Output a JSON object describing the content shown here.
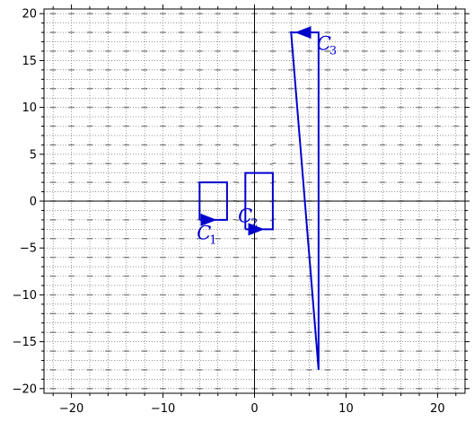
{
  "chart_data": {
    "type": "line",
    "title": "",
    "xlabel": "",
    "ylabel": "",
    "xlim": [
      -23,
      23
    ],
    "ylim": [
      -20.5,
      20.5
    ],
    "x_ticks": [
      {
        "value": -20,
        "label": "−20"
      },
      {
        "value": -10,
        "label": "−10"
      },
      {
        "value": 0,
        "label": "0"
      },
      {
        "value": 10,
        "label": "10"
      },
      {
        "value": 20,
        "label": "20"
      }
    ],
    "y_ticks": [
      {
        "value": 20,
        "label": "20"
      },
      {
        "value": 15,
        "label": "15"
      },
      {
        "value": 10,
        "label": "10"
      },
      {
        "value": 5,
        "label": "5"
      },
      {
        "value": 0,
        "label": "0"
      },
      {
        "value": -5,
        "label": "−5"
      },
      {
        "value": -10,
        "label": "−10"
      },
      {
        "value": -15,
        "label": "−15"
      },
      {
        "value": -20,
        "label": "−20"
      }
    ],
    "grid": "dotted",
    "background_field": "short gray dashes",
    "colors": {
      "curve": "#0000cc",
      "grid": "#555555",
      "field": "#888888",
      "axes": "#000000"
    },
    "series": [
      {
        "name": "C_1",
        "label_main": "C",
        "label_sub": "1",
        "points": [
          [
            -6,
            -2
          ],
          [
            -3,
            -2
          ],
          [
            -3,
            2
          ],
          [
            -6,
            2
          ],
          [
            -6,
            -2
          ]
        ],
        "arrow": {
          "x": -5,
          "y": -2,
          "direction": "right"
        },
        "label_pos": {
          "x": -6.3,
          "y": -3.4
        }
      },
      {
        "name": "C_2",
        "label_main": "C",
        "label_sub": "2",
        "points": [
          [
            -1,
            -3
          ],
          [
            2,
            -3
          ],
          [
            2,
            3
          ],
          [
            -1,
            3
          ],
          [
            -1,
            -3
          ]
        ],
        "arrow": {
          "x": 0.2,
          "y": -3,
          "direction": "right"
        },
        "label_pos": {
          "x": -1.8,
          "y": -1.6
        }
      },
      {
        "name": "C_3",
        "label_main": "C",
        "label_sub": "3",
        "points": [
          [
            7,
            -18
          ],
          [
            7,
            18
          ],
          [
            4,
            18
          ],
          [
            7,
            -18
          ]
        ],
        "arrow": {
          "x": 5.3,
          "y": 18,
          "direction": "left"
        },
        "label_pos": {
          "x": 6.8,
          "y": 16.8
        }
      }
    ]
  }
}
